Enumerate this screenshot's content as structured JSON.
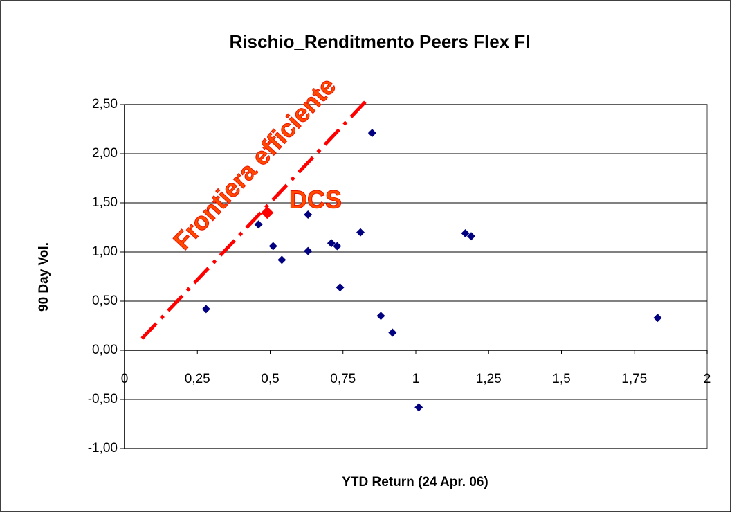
{
  "chart_data": {
    "type": "scatter",
    "title": "Rischio_Renditmento Peers Flex FI",
    "x_label": "YTD Return (24 Apr. 06)",
    "y_label": "90 Day Vol.",
    "annotations": [
      "Frontiera efficiente",
      "DCS"
    ],
    "xlim": [
      0,
      2
    ],
    "xticks": [
      0,
      {
        "value": 0.25,
        "label": "0,25"
      },
      {
        "value": 0.5,
        "label": "0,5"
      },
      {
        "value": 0.75,
        "label": "0,75"
      },
      1,
      {
        "value": 1.25,
        "label": "1,25"
      },
      {
        "value": 1.5,
        "label": "1,5"
      },
      {
        "value": 1.75,
        "label": "1,75"
      },
      2
    ],
    "ylim": [
      -1,
      2.5
    ],
    "yticks": [
      {
        "value": -1,
        "label": "-1,00"
      },
      {
        "value": -0.5,
        "label": "-0,50"
      },
      {
        "value": 0,
        "label": "0,00"
      },
      {
        "value": 0.5,
        "label": "0,50"
      },
      {
        "value": 1,
        "label": "1,00"
      },
      {
        "value": 1.5,
        "label": "1,50"
      },
      {
        "value": 2,
        "label": "2,00"
      },
      {
        "value": 2.5,
        "label": "2,50"
      }
    ],
    "grid": true,
    "series": [
      {
        "color": "#000080",
        "x": [
          0.28,
          0.46,
          0.51,
          0.54,
          0.63,
          0.63,
          0.71,
          0.73,
          0.74,
          0.81,
          0.85,
          0.88,
          0.92,
          1.01,
          1.17,
          1.19,
          1.83
        ],
        "values": [
          0.42,
          1.28,
          1.06,
          0.92,
          1.38,
          1.01,
          1.09,
          1.06,
          0.64,
          1.2,
          2.21,
          0.35,
          0.18,
          -0.58,
          1.19,
          1.16,
          0.33
        ]
      },
      {
        "color": "#ff0000",
        "x": [
          0.49
        ],
        "values": [
          1.4
        ]
      }
    ],
    "frontier": {
      "color": "#ff0000",
      "x": [
        0.06,
        0.84
      ],
      "values": [
        0.12,
        2.57
      ]
    }
  }
}
